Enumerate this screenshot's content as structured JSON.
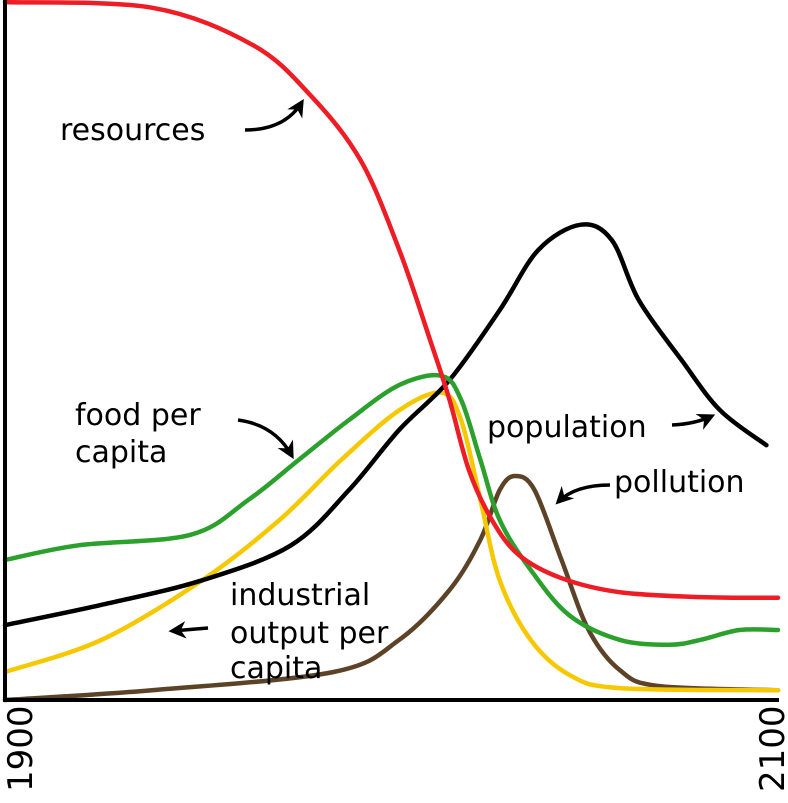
{
  "chart_data": {
    "type": "line",
    "title": "",
    "xlabel": "",
    "ylabel": "",
    "xlim": [
      1900,
      2100
    ],
    "ylim": [
      0,
      100
    ],
    "x_tick_labels": [
      "1900",
      "2100"
    ],
    "grid": false,
    "legend": "none (inline labels with arrows)",
    "series": [
      {
        "name": "resources",
        "color": "#ee1c25",
        "points": [
          [
            1900,
            99.7
          ],
          [
            1938,
            98.9
          ],
          [
            1964,
            93.6
          ],
          [
            1979,
            86.4
          ],
          [
            1992,
            77.1
          ],
          [
            2002,
            64.3
          ],
          [
            2010,
            51.4
          ],
          [
            2015,
            42.9
          ],
          [
            2020,
            32.9
          ],
          [
            2026,
            25.7
          ],
          [
            2033,
            20.7
          ],
          [
            2044,
            17.4
          ],
          [
            2059,
            15.4
          ],
          [
            2080,
            14.7
          ],
          [
            2100,
            14.6
          ]
        ]
      },
      {
        "name": "population",
        "color": "#000000",
        "points": [
          [
            1900,
            10.7
          ],
          [
            1925,
            13.6
          ],
          [
            1951,
            17.1
          ],
          [
            1974,
            22.1
          ],
          [
            1989,
            30
          ],
          [
            2002,
            38.6
          ],
          [
            2015,
            45.7
          ],
          [
            2028,
            55.7
          ],
          [
            2038,
            64.3
          ],
          [
            2049,
            67.9
          ],
          [
            2057,
            65.7
          ],
          [
            2064,
            57.1
          ],
          [
            2075,
            48.6
          ],
          [
            2085,
            41.4
          ],
          [
            2097,
            36.4
          ]
        ]
      },
      {
        "name": "food per capita",
        "color": "#2ca02c",
        "points": [
          [
            1900,
            20
          ],
          [
            1919,
            22.1
          ],
          [
            1948,
            23.6
          ],
          [
            1963,
            28.6
          ],
          [
            1976,
            34.3
          ],
          [
            1989,
            40
          ],
          [
            2002,
            45
          ],
          [
            2013,
            46.3
          ],
          [
            2018,
            42.9
          ],
          [
            2023,
            34.3
          ],
          [
            2028,
            25.7
          ],
          [
            2036,
            18.6
          ],
          [
            2046,
            12.1
          ],
          [
            2059,
            8.6
          ],
          [
            2072,
            7.9
          ],
          [
            2080,
            8.6
          ],
          [
            2090,
            10
          ],
          [
            2100,
            10
          ]
        ]
      },
      {
        "name": "industrial output per capita",
        "color": "#f5c800",
        "points": [
          [
            1900,
            4
          ],
          [
            1925,
            8.6
          ],
          [
            1951,
            17.1
          ],
          [
            1971,
            25.7
          ],
          [
            1987,
            34.3
          ],
          [
            2002,
            41.4
          ],
          [
            2013,
            43.9
          ],
          [
            2018,
            40
          ],
          [
            2023,
            28.6
          ],
          [
            2028,
            17.1
          ],
          [
            2036,
            8.6
          ],
          [
            2046,
            3.6
          ],
          [
            2059,
            1.7
          ],
          [
            2100,
            1.4
          ]
        ]
      },
      {
        "name": "pollution",
        "color": "#5c4328",
        "points": [
          [
            1900,
            0
          ],
          [
            1938,
            1.4
          ],
          [
            1985,
            4
          ],
          [
            2002,
            8.6
          ],
          [
            2015,
            15.7
          ],
          [
            2023,
            22.9
          ],
          [
            2028,
            30
          ],
          [
            2032,
            32
          ],
          [
            2037,
            30
          ],
          [
            2044,
            20
          ],
          [
            2051,
            10
          ],
          [
            2059,
            4.3
          ],
          [
            2069,
            2
          ],
          [
            2100,
            1.4
          ]
        ]
      }
    ],
    "annotations": {
      "resources": "resources",
      "food_line1": "food per",
      "food_line2": "capita",
      "population": "population",
      "pollution": "pollution",
      "industrial_line1": "industrial",
      "industrial_line2": "output per",
      "industrial_line3": "capita"
    }
  }
}
